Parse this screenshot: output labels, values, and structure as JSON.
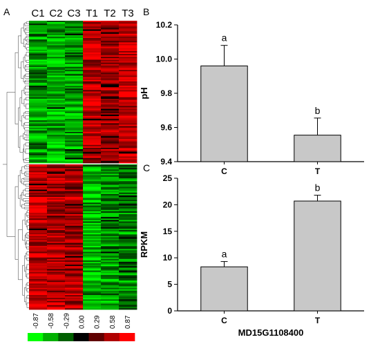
{
  "panels": {
    "A": "A",
    "B": "B",
    "C": "C"
  },
  "colors": {
    "heat_low": "#00ff00",
    "heat_mid": "#000000",
    "heat_high": "#ff0000",
    "bar_fill": "#c8c8c8",
    "bar_stroke": "#000000"
  },
  "chart_data": [
    {
      "type": "heatmap",
      "panel": "A",
      "columns": [
        "C1",
        "C2",
        "C3",
        "T1",
        "T2",
        "T3"
      ],
      "color_scale": {
        "ticks": [
          "-0.87",
          "-0.58",
          "-0.29",
          "0.00",
          "0.29",
          "0.58",
          "0.87"
        ],
        "colors": [
          "#00ff00",
          "#00b000",
          "#006000",
          "#000000",
          "#600000",
          "#b00000",
          "#ff0000"
        ]
      },
      "dendrogram": "rows clustered into two main groups (upper: C high-low pattern, lower: C high / T low)"
    },
    {
      "type": "bar",
      "panel": "B",
      "categories": [
        "C",
        "T"
      ],
      "values": [
        9.96,
        9.555
      ],
      "errors": [
        0.12,
        0.1
      ],
      "significance": [
        "a",
        "b"
      ],
      "title": "",
      "xlabel": "",
      "ylabel": "pH",
      "ylim": [
        9.4,
        10.2
      ],
      "yticks": [
        "9.4",
        "9.6",
        "9.8",
        "10.0",
        "10.2"
      ],
      "grid": false
    },
    {
      "type": "bar",
      "panel": "C",
      "categories": [
        "C",
        "T"
      ],
      "values": [
        8.3,
        20.7
      ],
      "errors": [
        1.0,
        1.1
      ],
      "significance": [
        "a",
        "b"
      ],
      "title": "",
      "xlabel": "MD15G1108400",
      "ylabel": "RPKM",
      "ylim": [
        0,
        25
      ],
      "yticks": [
        "0",
        "5",
        "10",
        "15",
        "20",
        "25"
      ],
      "grid": false
    }
  ]
}
